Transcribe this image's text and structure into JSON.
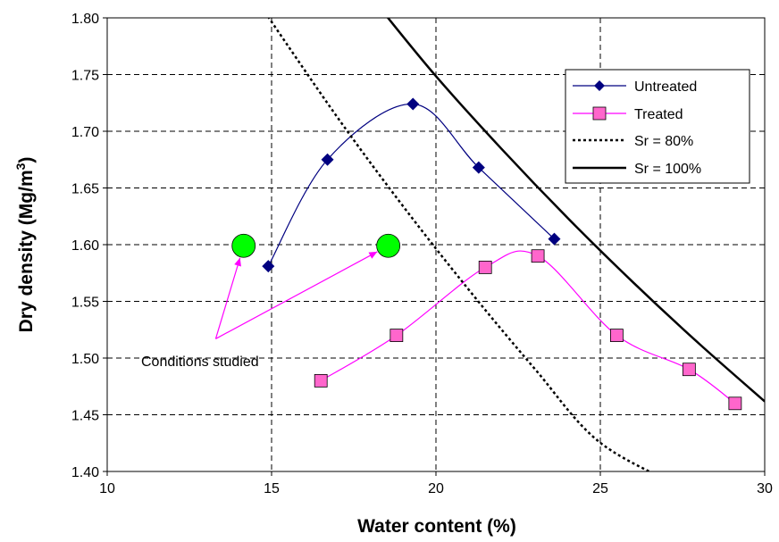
{
  "chart_data": {
    "type": "scatter",
    "title": "",
    "xlabel": "Water content (%)",
    "ylabel_main": "Dry density (Mg/m",
    "ylabel_sup": "3",
    "ylabel_close": ")",
    "xlim": [
      10,
      30
    ],
    "ylim": [
      1.4,
      1.8
    ],
    "xticks": [
      10,
      15,
      20,
      25,
      30
    ],
    "yticks": [
      1.4,
      1.45,
      1.5,
      1.55,
      1.6,
      1.65,
      1.7,
      1.75,
      1.8
    ],
    "x_tick_labels": [
      "10",
      "15",
      "20",
      "25",
      "30"
    ],
    "y_tick_labels": [
      "1.40",
      "1.45",
      "1.50",
      "1.55",
      "1.60",
      "1.65",
      "1.70",
      "1.75",
      "1.80"
    ],
    "grid": true,
    "legend_position": "top-right",
    "series": [
      {
        "name": "Untreated",
        "marker": "diamond",
        "line": "smooth",
        "color": "#000080",
        "points": [
          [
            14.9,
            1.581
          ],
          [
            16.7,
            1.675
          ],
          [
            19.3,
            1.724
          ],
          [
            21.3,
            1.668
          ],
          [
            23.6,
            1.605
          ]
        ]
      },
      {
        "name": "Treated",
        "marker": "square",
        "line": "smooth",
        "color": "#FF00FF",
        "marker_fill": "#FF66CC",
        "points": [
          [
            16.5,
            1.48
          ],
          [
            18.8,
            1.52
          ],
          [
            21.5,
            1.58
          ],
          [
            23.1,
            1.59
          ],
          [
            25.5,
            1.52
          ],
          [
            27.7,
            1.49
          ],
          [
            29.1,
            1.46
          ]
        ]
      },
      {
        "name": "Sr = 80%",
        "marker": "none",
        "line": "dotted",
        "color": "#000000",
        "points": [
          [
            14.8,
            1.805
          ],
          [
            17.0,
            1.7124
          ],
          [
            19.0,
            1.6339
          ],
          [
            21.0,
            1.5602
          ],
          [
            23.0,
            1.4907
          ],
          [
            25.0,
            1.4253
          ],
          [
            27.7,
            1.3833
          ]
        ]
      },
      {
        "name": "Sr = 100%",
        "marker": "none",
        "line": "solid",
        "color": "#000000",
        "points": [
          [
            18.4,
            1.805
          ],
          [
            20.0,
            1.7486
          ],
          [
            22.0,
            1.6843
          ],
          [
            24.0,
            1.6237
          ],
          [
            26.0,
            1.5667
          ],
          [
            28.0,
            1.5128
          ],
          [
            30.0,
            1.4618
          ]
        ]
      }
    ],
    "studied_conditions": {
      "color": "#00FF00",
      "points": [
        [
          14.15,
          1.599
        ],
        [
          18.55,
          1.599
        ]
      ]
    },
    "annotation": {
      "text": "Conditions studied",
      "anchor": [
        13.3,
        1.517
      ],
      "color": "#FF00FF"
    }
  }
}
